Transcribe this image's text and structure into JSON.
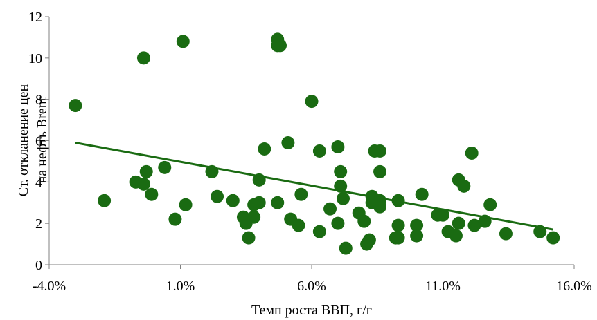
{
  "chart_data": {
    "type": "scatter",
    "title": "",
    "xlabel": "Темп роста ВВП, г/г",
    "ylabel_lines": [
      "Ст. откланение  цен",
      "на нефть Brent"
    ],
    "xlim": [
      -0.04,
      0.16
    ],
    "ylim": [
      0,
      12
    ],
    "x_ticks": [
      -0.04,
      0.01,
      0.06,
      0.11,
      0.16
    ],
    "x_tick_labels": [
      "-4.0%",
      "1.0%",
      "6.0%",
      "11.0%",
      "16.0%"
    ],
    "y_ticks": [
      0,
      2,
      4,
      6,
      8,
      10,
      12
    ],
    "y_tick_labels": [
      "0",
      "2",
      "4",
      "6",
      "8",
      "10",
      "12"
    ],
    "grid": false,
    "legend": "none",
    "series_color": "#1a6b12",
    "trendline": {
      "type": "linear",
      "x": [
        -0.03,
        0.152
      ],
      "y": [
        5.9,
        1.7
      ]
    },
    "points": [
      [
        -0.03,
        7.7
      ],
      [
        -0.019,
        3.1
      ],
      [
        -0.004,
        10.0
      ],
      [
        -0.007,
        4.0
      ],
      [
        -0.003,
        4.5
      ],
      [
        -0.004,
        3.9
      ],
      [
        -0.001,
        3.4
      ],
      [
        0.004,
        4.7
      ],
      [
        0.008,
        2.2
      ],
      [
        0.011,
        10.8
      ],
      [
        0.012,
        2.9
      ],
      [
        0.022,
        4.5
      ],
      [
        0.024,
        3.3
      ],
      [
        0.03,
        3.1
      ],
      [
        0.034,
        2.3
      ],
      [
        0.035,
        2.0
      ],
      [
        0.036,
        1.3
      ],
      [
        0.038,
        2.3
      ],
      [
        0.038,
        2.9
      ],
      [
        0.04,
        4.1
      ],
      [
        0.04,
        3.0
      ],
      [
        0.042,
        5.6
      ],
      [
        0.047,
        10.9
      ],
      [
        0.047,
        10.6
      ],
      [
        0.048,
        10.6
      ],
      [
        0.047,
        3.0
      ],
      [
        0.051,
        5.9
      ],
      [
        0.052,
        2.2
      ],
      [
        0.055,
        1.9
      ],
      [
        0.056,
        3.4
      ],
      [
        0.06,
        7.9
      ],
      [
        0.063,
        5.5
      ],
      [
        0.063,
        1.6
      ],
      [
        0.067,
        2.7
      ],
      [
        0.07,
        5.7
      ],
      [
        0.071,
        4.5
      ],
      [
        0.071,
        3.8
      ],
      [
        0.072,
        3.2
      ],
      [
        0.07,
        2.0
      ],
      [
        0.073,
        0.8
      ],
      [
        0.078,
        2.5
      ],
      [
        0.08,
        2.1
      ],
      [
        0.081,
        1.0
      ],
      [
        0.082,
        1.2
      ],
      [
        0.083,
        3.3
      ],
      [
        0.083,
        3.0
      ],
      [
        0.084,
        5.5
      ],
      [
        0.086,
        5.5
      ],
      [
        0.086,
        3.1
      ],
      [
        0.086,
        2.8
      ],
      [
        0.086,
        4.5
      ],
      [
        0.092,
        1.3
      ],
      [
        0.093,
        1.3
      ],
      [
        0.093,
        3.1
      ],
      [
        0.093,
        1.9
      ],
      [
        0.1,
        1.4
      ],
      [
        0.1,
        1.9
      ],
      [
        0.102,
        3.4
      ],
      [
        0.108,
        2.4
      ],
      [
        0.11,
        2.4
      ],
      [
        0.112,
        1.6
      ],
      [
        0.115,
        1.4
      ],
      [
        0.116,
        4.1
      ],
      [
        0.116,
        2.0
      ],
      [
        0.118,
        3.8
      ],
      [
        0.121,
        5.4
      ],
      [
        0.122,
        1.9
      ],
      [
        0.126,
        2.1
      ],
      [
        0.128,
        2.9
      ],
      [
        0.134,
        1.5
      ],
      [
        0.147,
        1.6
      ],
      [
        0.152,
        1.3
      ]
    ]
  }
}
